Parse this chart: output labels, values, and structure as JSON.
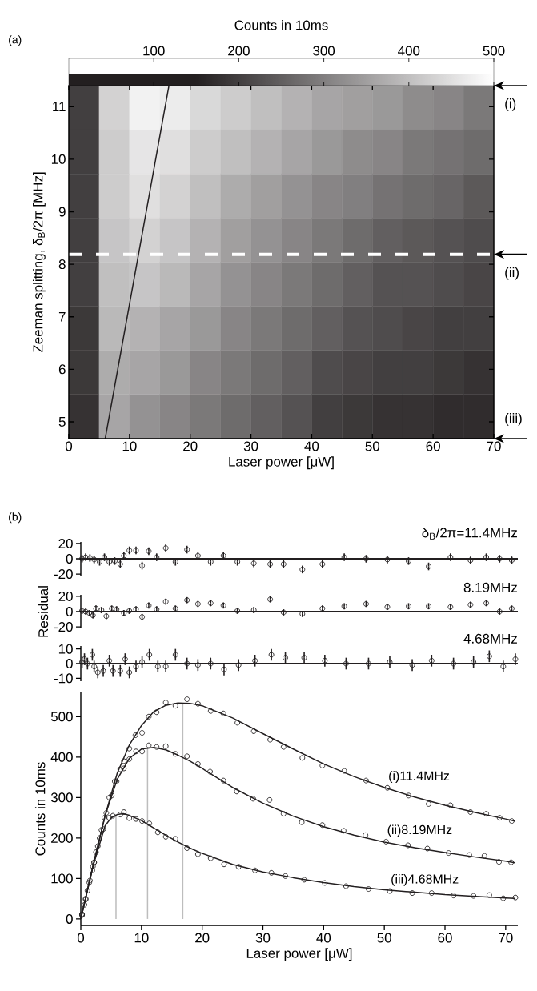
{
  "chart_data": [
    {
      "type": "heatmap",
      "annotations": [
        "(a)",
        "(i)",
        "(iii)"
      ],
      "xlabel": "Laser power [μW]",
      "ylabel": "Zeeman splitting, δ$_{B}$/2π [MHz]",
      "clabel": "Counts in 10ms",
      "x": [
        2.5,
        7.5,
        12.5,
        17.5,
        22.5,
        27.5,
        32.5,
        37.5,
        42.5,
        47.5,
        52.5,
        57.5,
        62.5,
        67.5
      ],
      "y": [
        10.98,
        10.14,
        9.3,
        8.46,
        7.62,
        6.78,
        5.94,
        5.1
      ],
      "cells": [
        [
          200,
          430,
          480,
          470,
          440,
          420,
          400,
          380,
          360,
          350,
          340,
          320,
          310,
          290
        ],
        [
          200,
          420,
          460,
          450,
          420,
          400,
          380,
          360,
          340,
          320,
          310,
          290,
          280,
          270
        ],
        [
          200,
          420,
          450,
          430,
          400,
          370,
          350,
          330,
          310,
          300,
          280,
          270,
          260,
          240
        ],
        [
          200,
          410,
          430,
          410,
          380,
          350,
          330,
          310,
          290,
          270,
          250,
          240,
          230,
          220
        ],
        [
          200,
          400,
          410,
          390,
          360,
          330,
          310,
          290,
          270,
          250,
          230,
          230,
          220,
          210
        ],
        [
          190,
          390,
          380,
          360,
          340,
          310,
          290,
          270,
          250,
          230,
          220,
          210,
          200,
          200
        ],
        [
          190,
          370,
          360,
          340,
          310,
          290,
          270,
          250,
          220,
          210,
          200,
          200,
          190,
          180
        ],
        [
          180,
          360,
          330,
          310,
          290,
          270,
          250,
          230,
          200,
          190,
          180,
          180,
          170,
          170
        ]
      ],
      "clim": [
        0,
        500
      ],
      "cticks": [
        100,
        200,
        300,
        400,
        500
      ],
      "xlim": [
        0,
        70
      ],
      "ylim": [
        4.68,
        11.4
      ],
      "xticks": [
        0,
        10,
        20,
        30,
        40,
        50,
        60,
        70
      ],
      "yticks": [
        5,
        6,
        7,
        8,
        9,
        10,
        11
      ],
      "series": [
        {
          "type": "line",
          "color": "#231f20",
          "x": [
            6,
            16.5
          ],
          "values": [
            4.68,
            11.4
          ]
        }
      ],
      "ref_lines": [
        {
          "axis": "y",
          "value": 8.19,
          "label": "(ii)",
          "color": "#ffffff",
          "line_style": "dashed"
        }
      ]
    },
    {
      "type": "scatter",
      "title": "δ$_{B}$/2π=11.4MHz",
      "annotations": [
        "(b)"
      ],
      "marker": "circle",
      "tick_labels": "y",
      "xlim": [
        0,
        72
      ],
      "ylim": [
        -22,
        22
      ],
      "yticks": [
        -20,
        0,
        20
      ],
      "ref_lines": [
        {
          "axis": "y",
          "value": 0,
          "color": "#231f20"
        }
      ],
      "series": [
        {
          "color": "#231f20",
          "x": [
            0.2,
            0.8,
            1.5,
            2.2,
            3.1,
            3.9,
            4.7,
            5.6,
            6.5,
            7.1,
            8.0,
            9.1,
            10.1,
            11.2,
            12.5,
            14.0,
            15.6,
            17.5,
            19.3,
            21.4,
            23.5,
            25.8,
            28.5,
            31.2,
            33.4,
            36.5,
            39.8,
            43.4,
            47.0,
            50.5,
            54.0,
            57.3,
            60.9,
            64.2,
            66.8,
            69.0,
            71.0
          ],
          "values": [
            0,
            2,
            1,
            -1,
            -4,
            2,
            -4,
            -3,
            -7,
            4,
            11,
            11,
            -9,
            10,
            2,
            14,
            -4,
            12,
            4,
            -4,
            4,
            -4,
            -6,
            -7,
            -7,
            -14,
            -7,
            2,
            0,
            -1,
            -3,
            -10,
            2,
            -2,
            2,
            0,
            -2
          ],
          "errors": [
            5,
            5,
            5,
            5,
            5,
            5,
            5,
            5,
            5,
            5,
            5,
            5,
            5,
            5,
            5,
            5,
            5,
            5,
            5,
            5,
            5,
            5,
            5,
            5,
            5,
            5,
            5,
            5,
            5,
            5,
            5,
            5,
            5,
            5,
            5,
            5,
            5
          ]
        }
      ]
    },
    {
      "type": "scatter",
      "title": "8.19MHz",
      "ylabel": "Residual",
      "marker": "circle",
      "tick_labels": "y",
      "xlim": [
        0,
        72
      ],
      "ylim": [
        -22,
        22
      ],
      "yticks": [
        -20,
        0,
        20
      ],
      "ref_lines": [
        {
          "axis": "y",
          "value": 0,
          "color": "#231f20"
        }
      ],
      "series": [
        {
          "color": "#231f20",
          "x": [
            0.2,
            0.8,
            1.4,
            2.0,
            2.5,
            3.4,
            4.2,
            5.1,
            5.9,
            7.1,
            8.0,
            9.1,
            10.1,
            11.2,
            12.5,
            14.0,
            15.6,
            17.5,
            19.3,
            21.4,
            23.5,
            25.8,
            28.5,
            31.2,
            33.4,
            36.5,
            39.8,
            43.4,
            47.0,
            50.5,
            54.0,
            57.3,
            60.9,
            64.2,
            66.8,
            69.0,
            71.0
          ],
          "values": [
            1,
            0,
            -2,
            -5,
            4,
            2,
            -6,
            4,
            3,
            -2,
            1,
            3,
            -7,
            8,
            3,
            13,
            4,
            15,
            10,
            11,
            8,
            1,
            2,
            16,
            -1,
            -3,
            4,
            7,
            10,
            6,
            7,
            7,
            6,
            9,
            11,
            0,
            4
          ],
          "errors": [
            4,
            4,
            4,
            4,
            4,
            4,
            4,
            4,
            4,
            4,
            4,
            4,
            4,
            4,
            4,
            4,
            4,
            4,
            4,
            4,
            4,
            4,
            4,
            4,
            4,
            4,
            4,
            4,
            4,
            4,
            4,
            4,
            4,
            4,
            4,
            4,
            4
          ]
        }
      ]
    },
    {
      "type": "scatter",
      "title": "4.68MHz",
      "marker": "circle",
      "tick_labels": "y",
      "xlim": [
        0,
        72
      ],
      "ylim": [
        -12,
        12
      ],
      "yticks": [
        -10,
        0,
        10
      ],
      "ref_lines": [
        {
          "axis": "y",
          "value": 0,
          "color": "#231f20"
        }
      ],
      "series": [
        {
          "color": "#231f20",
          "x": [
            0.2,
            0.6,
            1.1,
            1.9,
            2.2,
            2.8,
            3.7,
            4.7,
            5.3,
            6.5,
            7.3,
            8.0,
            9.1,
            10.1,
            11.3,
            12.7,
            14.0,
            15.6,
            17.5,
            19.3,
            21.4,
            23.6,
            26.0,
            28.7,
            31.4,
            33.7,
            36.8,
            40.2,
            43.7,
            47.4,
            50.9,
            54.6,
            57.8,
            61.4,
            64.7,
            67.3,
            69.6,
            71.6
          ],
          "values": [
            1,
            3,
            0,
            6,
            -2,
            -6,
            -5,
            2,
            -5,
            -5,
            3,
            -6,
            -2,
            1,
            6,
            -2,
            -2,
            6,
            0,
            -1,
            0,
            -4,
            -1,
            2,
            6,
            4,
            4,
            2,
            0,
            0,
            1,
            -1,
            2,
            0,
            1,
            5,
            -2,
            3
          ],
          "errors": [
            4,
            4,
            4,
            4,
            4,
            4,
            4,
            4,
            4,
            4,
            4,
            4,
            4,
            4,
            4,
            4,
            4,
            4,
            4,
            4,
            4,
            4,
            4,
            4,
            4,
            4,
            4,
            4,
            4,
            4,
            4,
            4,
            4,
            4,
            4,
            4,
            4,
            4
          ]
        }
      ]
    },
    {
      "type": "scatter",
      "xlabel": "Laser power [μW]",
      "ylabel": "Counts in 10ms",
      "marker": "circle",
      "xlim": [
        0,
        72
      ],
      "ylim": [
        -16,
        560
      ],
      "xticks": [
        0,
        10,
        20,
        30,
        40,
        50,
        60,
        70
      ],
      "yticks": [
        0,
        100,
        200,
        300,
        400,
        500
      ],
      "series": [
        {
          "type": "line",
          "marker": "none",
          "color": "#bdbdbd",
          "x": [
            5.8,
            5.8
          ],
          "values": [
            0,
            258
          ]
        },
        {
          "type": "line",
          "marker": "none",
          "color": "#bdbdbd",
          "x": [
            11,
            11
          ],
          "values": [
            0,
            424
          ]
        },
        {
          "type": "line",
          "marker": "none",
          "color": "#bdbdbd",
          "x": [
            16.8,
            16.8
          ],
          "values": [
            0,
            534
          ]
        },
        {
          "type": "line",
          "marker": "none",
          "color": "#231f20",
          "x": [
            0,
            2,
            4,
            6,
            8,
            10,
            12,
            14,
            16,
            18,
            20,
            25,
            30,
            35,
            40,
            45,
            50,
            55,
            60,
            65,
            70,
            71.5
          ],
          "values": [
            0,
            130,
            255,
            360,
            430,
            478,
            512,
            528,
            534,
            533,
            527,
            497,
            458,
            420,
            383,
            352,
            325,
            301,
            281,
            263,
            247,
            242
          ]
        },
        {
          "type": "line",
          "marker": "none",
          "color": "#231f20",
          "x": [
            0,
            2,
            4,
            6,
            8,
            10,
            12,
            14,
            16,
            18,
            20,
            25,
            30,
            35,
            40,
            45,
            50,
            55,
            60,
            65,
            70,
            71.5
          ],
          "values": [
            0,
            130,
            255,
            345,
            397,
            420,
            424,
            418,
            405,
            390,
            372,
            325,
            286,
            254,
            228,
            207,
            190,
            176,
            164,
            153,
            143,
            139
          ]
        },
        {
          "type": "line",
          "marker": "none",
          "color": "#231f20",
          "x": [
            0,
            2,
            4,
            5,
            6,
            7,
            8,
            10,
            12,
            14,
            16,
            18,
            20,
            25,
            30,
            35,
            40,
            45,
            50,
            55,
            60,
            65,
            70,
            71.5
          ],
          "values": [
            0,
            130,
            230,
            250,
            258,
            260,
            256,
            243,
            225,
            207,
            190,
            175,
            162,
            135,
            116,
            102,
            90,
            80,
            72,
            66,
            60,
            56,
            52,
            51
          ]
        },
        {
          "name": "(i)11.4MHz",
          "color": "#231f20",
          "x": [
            0.2,
            0.8,
            1.5,
            2.2,
            3.1,
            3.9,
            4.7,
            5.6,
            6.5,
            7.1,
            8.0,
            9.0,
            10.1,
            11.2,
            12.5,
            14.0,
            15.6,
            17.5,
            19.3,
            21.4,
            23.5,
            25.8,
            28.5,
            31.2,
            33.4,
            36.5,
            39.8,
            43.4,
            47.0,
            50.5,
            54.0,
            57.3,
            60.9,
            64.2,
            66.8,
            69.0,
            71.0
          ],
          "values": [
            12,
            50,
            95,
            140,
            200,
            250,
            300,
            340,
            370,
            390,
            421,
            454,
            460,
            500,
            511,
            535,
            527,
            543,
            532,
            514,
            508,
            485,
            464,
            443,
            425,
            398,
            379,
            366,
            342,
            324,
            305,
            284,
            281,
            264,
            260,
            250,
            242
          ]
        },
        {
          "name": "(ii)8.19MHz",
          "color": "#231f20",
          "x": [
            0.2,
            0.8,
            1.4,
            2.0,
            2.5,
            3.4,
            4.2,
            5.1,
            5.9,
            7.1,
            8.0,
            9.1,
            10.1,
            11.2,
            12.5,
            14.0,
            15.6,
            17.5,
            19.3,
            21.3,
            23.5,
            25.7,
            28.4,
            31.1,
            33.4,
            36.4,
            39.8,
            43.3,
            46.9,
            50.3,
            53.9,
            57.1,
            60.6,
            64.0,
            66.5,
            68.9,
            70.9
          ],
          "values": [
            10,
            48,
            90,
            130,
            165,
            220,
            262,
            305,
            340,
            372,
            395,
            414,
            414,
            429,
            425,
            427,
            408,
            402,
            383,
            364,
            342,
            315,
            297,
            294,
            260,
            239,
            232,
            218,
            207,
            191,
            182,
            174,
            163,
            158,
            156,
            141,
            140
          ]
        },
        {
          "name": "(iii)4.68MHz",
          "color": "#231f20",
          "x": [
            0.2,
            0.6,
            1.1,
            1.9,
            2.2,
            2.8,
            3.7,
            4.7,
            5.3,
            6.5,
            7.1,
            8.0,
            9.1,
            10.1,
            11.3,
            12.7,
            14.0,
            15.6,
            17.5,
            19.3,
            21.4,
            23.6,
            26.0,
            28.7,
            31.4,
            33.7,
            36.8,
            40.2,
            43.7,
            47.4,
            50.9,
            54.6,
            57.8,
            61.4,
            64.7,
            67.3,
            69.6,
            71.6
          ],
          "values": [
            10,
            35,
            70,
            120,
            140,
            180,
            222,
            250,
            255,
            258,
            264,
            249,
            247,
            242,
            236,
            214,
            203,
            198,
            175,
            160,
            150,
            135,
            129,
            120,
            114,
            106,
            97,
            89,
            81,
            74,
            69,
            64,
            64,
            58,
            57,
            59,
            51,
            53
          ]
        }
      ]
    }
  ]
}
